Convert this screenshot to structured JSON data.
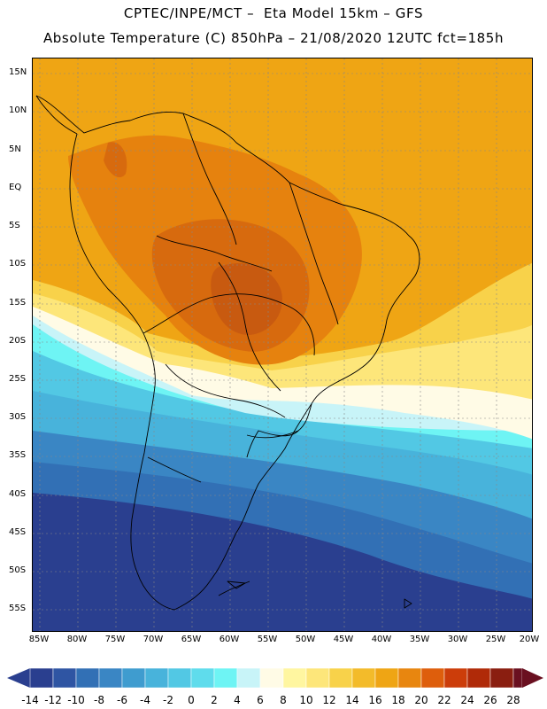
{
  "header": {
    "line1": "CPTEC/INPE/MCT –  Eta Model 15km – GFS",
    "line2": "Absolute Temperature (C) 850hPa – 21/08/2020 12UTC fct=185h"
  },
  "axes": {
    "lat_labels": [
      "15N",
      "10N",
      "5N",
      "EQ",
      "5S",
      "10S",
      "15S",
      "20S",
      "25S",
      "30S",
      "35S",
      "40S",
      "45S",
      "50S",
      "55S"
    ],
    "lon_labels": [
      "85W",
      "80W",
      "75W",
      "70W",
      "65W",
      "60W",
      "55W",
      "50W",
      "45W",
      "40W",
      "35W",
      "30W",
      "25W",
      "20W"
    ]
  },
  "colorbar": {
    "ticks": [
      "-14",
      "-12",
      "-10",
      "-8",
      "-6",
      "-4",
      "-2",
      "0",
      "2",
      "4",
      "6",
      "8",
      "10",
      "12",
      "14",
      "16",
      "18",
      "20",
      "22",
      "24",
      "26",
      "28"
    ],
    "colors": [
      "#2a3f8f",
      "#2f55a3",
      "#3270b5",
      "#3a86c4",
      "#3f9ccf",
      "#48b3db",
      "#52c8e4",
      "#5fdcec",
      "#6ef4f4",
      "#c8f4f8",
      "#fffbe6",
      "#fff6a0",
      "#fde67a",
      "#f8d24a",
      "#f3bb2a",
      "#efa514",
      "#e8860f",
      "#de5e0c",
      "#cc3d0a",
      "#b02a08",
      "#8a1e10",
      "#6a1020"
    ]
  },
  "colors": {
    "warm_dark": "#c85a10",
    "warm": "#e6820e",
    "orange": "#efa514",
    "yellow": "#f8d24a",
    "pale": "#fff6a0",
    "cream": "#fffbe6",
    "cyan_light": "#c8f4f8",
    "cyan": "#6ef4f4",
    "aqua": "#48c6e4",
    "blue": "#3a86c4",
    "navy": "#2a3f8f",
    "coast": "#000000"
  }
}
